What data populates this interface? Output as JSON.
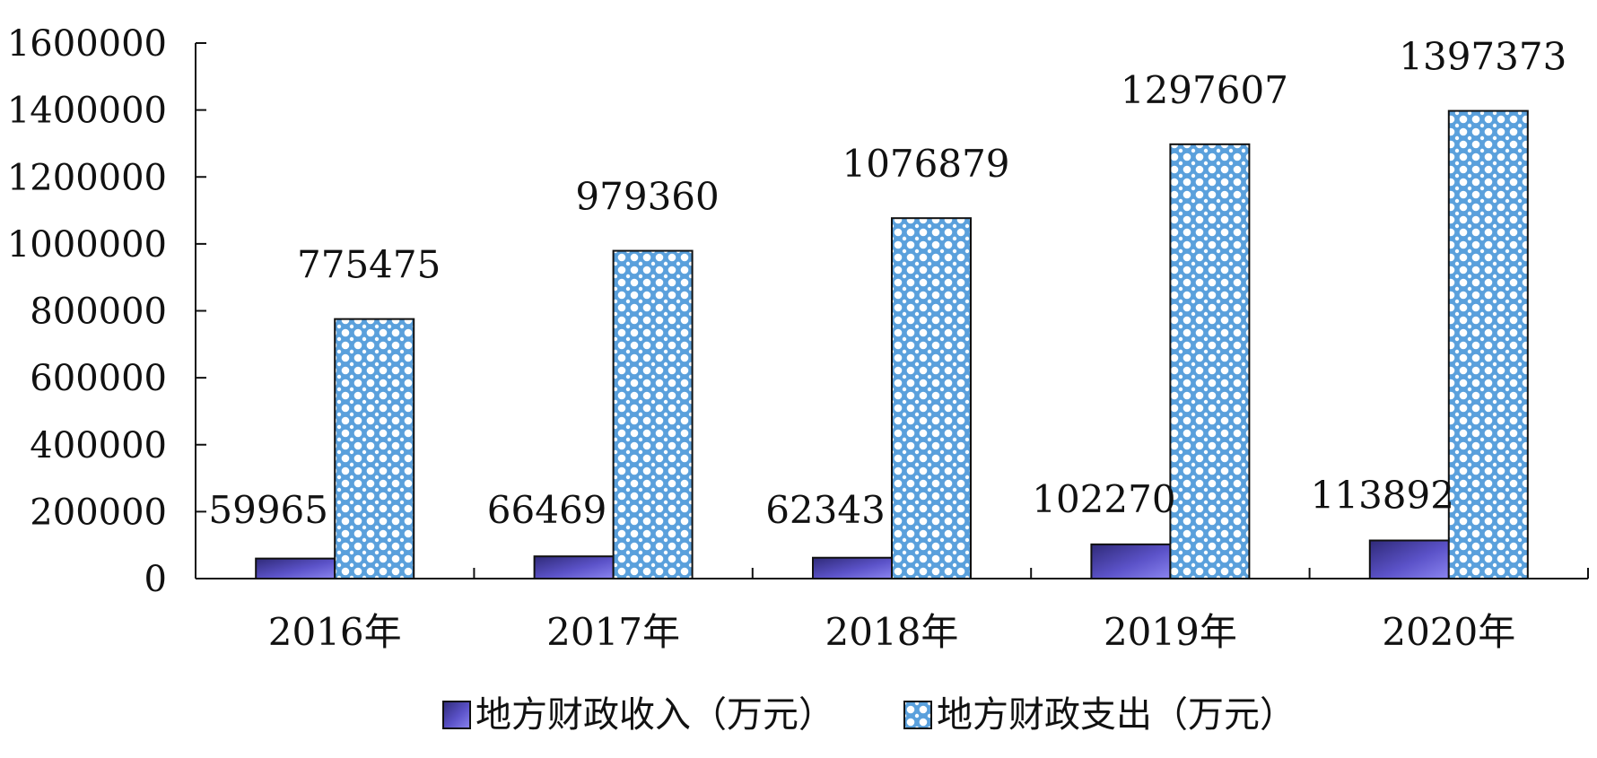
{
  "chart_data": {
    "type": "bar",
    "title": "",
    "xlabel": "",
    "ylabel": "",
    "categories": [
      "2016年",
      "2017年",
      "2018年",
      "2019年",
      "2020年"
    ],
    "series": [
      {
        "name": "地方财政收入（万元）",
        "values": [
          59965,
          66469,
          62343,
          102270,
          113892
        ],
        "color": "#5b52c8"
      },
      {
        "name": "地方财政支出（万元）",
        "values": [
          775475,
          979360,
          1076879,
          1297607,
          1397373
        ],
        "color": "#5aa0dc"
      }
    ],
    "ylim": [
      0,
      1600000
    ],
    "yticks": [
      "0",
      "200000",
      "400000",
      "600000",
      "800000",
      "1000000",
      "1200000",
      "1400000",
      "1600000"
    ],
    "grid": false,
    "legend": "bottom"
  }
}
